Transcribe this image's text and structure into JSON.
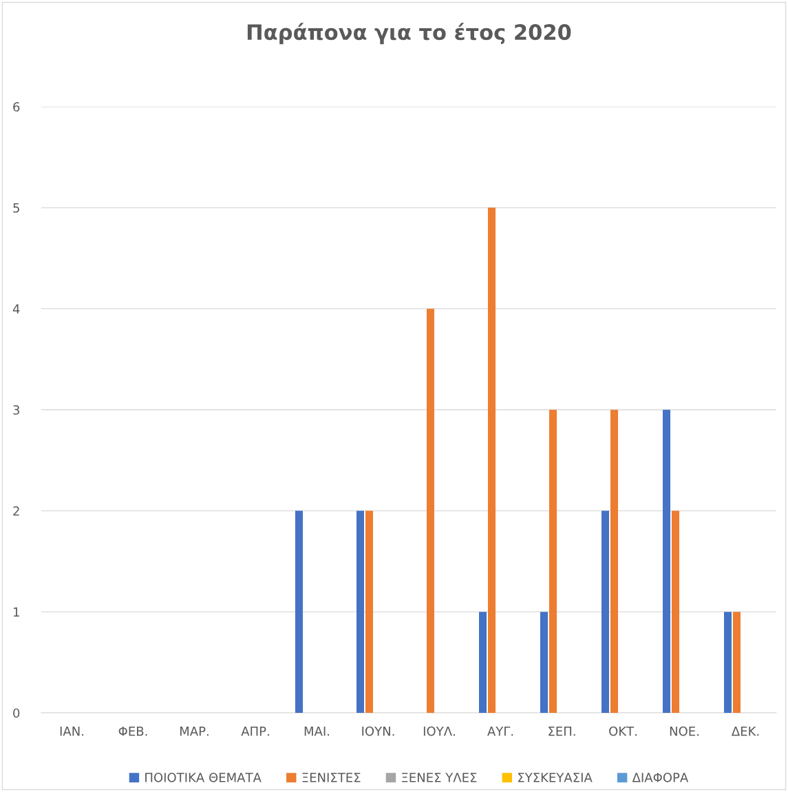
{
  "chart_data": {
    "type": "bar",
    "title": "Παράπονα για το έτος 2020",
    "categories": [
      "ΙΑΝ.",
      "ΦΕΒ.",
      "ΜΑΡ.",
      "ΑΠΡ.",
      "ΜΑΙ.",
      "ΙΟΥΝ.",
      "ΙΟΥΛ.",
      "ΑΥΓ.",
      "ΣΕΠ.",
      "ΟΚΤ.",
      "ΝΟΕ.",
      "ΔΕΚ."
    ],
    "series": [
      {
        "name": "ΠΟΙΟΤΙΚΑ ΘΕΜΑΤΑ",
        "color": "#4472c4",
        "values": [
          0,
          0,
          0,
          0,
          2,
          2,
          0,
          1,
          1,
          2,
          3,
          1
        ]
      },
      {
        "name": "ΞΕΝΙΣΤΕΣ",
        "color": "#ed7d31",
        "values": [
          0,
          0,
          0,
          0,
          0,
          2,
          4,
          5,
          3,
          3,
          2,
          1
        ]
      },
      {
        "name": "ΞΕΝΕΣ ΥΛΕΣ",
        "color": "#a5a5a5",
        "values": [
          0,
          0,
          0,
          0,
          0,
          0,
          0,
          0,
          0,
          0,
          0,
          0
        ]
      },
      {
        "name": "ΣΥΣΚΕΥΑΣΙΑ",
        "color": "#ffc000",
        "values": [
          0,
          0,
          0,
          0,
          0,
          0,
          0,
          0,
          0,
          0,
          0,
          0
        ]
      },
      {
        "name": "ΔΙΑΦΟΡΑ",
        "color": "#5b9bd5",
        "values": [
          0,
          0,
          0,
          0,
          0,
          0,
          0,
          0,
          0,
          0,
          0,
          0
        ]
      }
    ],
    "ylim": [
      0,
      6
    ],
    "yticks": [
      0,
      1,
      2,
      3,
      4,
      5,
      6
    ],
    "grid": "y",
    "legend": "bottom"
  }
}
